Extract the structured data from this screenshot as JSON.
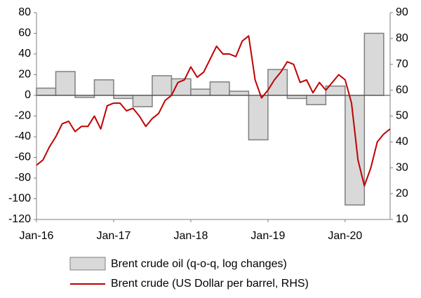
{
  "chart_data": {
    "type": "combo",
    "xlim": [
      "Jan-16",
      "Aug-20"
    ],
    "xticks": [
      "Jan-16",
      "Jan-17",
      "Jan-18",
      "Jan-19",
      "Jan-20"
    ],
    "ylim": [
      -120,
      80
    ],
    "yticks": [
      -120,
      -100,
      -80,
      -60,
      -40,
      -20,
      0,
      20,
      40,
      60,
      80
    ],
    "y2lim": [
      10,
      90
    ],
    "y2ticks": [
      10,
      20,
      30,
      40,
      50,
      60,
      70,
      80,
      90
    ],
    "series": [
      {
        "name": "Brent crude oil (q-o-q, log changes)",
        "type": "bar",
        "color": "#d9d9d9",
        "edge": "#7f7f7f",
        "x": [
          "Jan-16",
          "Apr-16",
          "Jul-16",
          "Oct-16",
          "Jan-17",
          "Apr-17",
          "Jul-17",
          "Oct-17",
          "Jan-18",
          "Apr-18",
          "Jul-18",
          "Oct-18",
          "Jan-19",
          "Apr-19",
          "Jul-19",
          "Oct-19",
          "Jan-20",
          "Apr-20"
        ],
        "values": [
          7,
          23,
          -2,
          15,
          -3,
          -11,
          19,
          16,
          6,
          13,
          4,
          -43,
          25,
          -3,
          -9,
          9,
          -106,
          60
        ]
      },
      {
        "name": "Brent crude (US Dollar per barrel, RHS)",
        "type": "line",
        "axis": "y2",
        "color": "#c00000",
        "x": [
          "Jan-16",
          "Feb-16",
          "Mar-16",
          "Apr-16",
          "May-16",
          "Jun-16",
          "Jul-16",
          "Aug-16",
          "Sep-16",
          "Oct-16",
          "Nov-16",
          "Dec-16",
          "Jan-17",
          "Feb-17",
          "Mar-17",
          "Apr-17",
          "May-17",
          "Jun-17",
          "Jul-17",
          "Aug-17",
          "Sep-17",
          "Oct-17",
          "Nov-17",
          "Dec-17",
          "Jan-18",
          "Feb-18",
          "Mar-18",
          "Apr-18",
          "May-18",
          "Jun-18",
          "Jul-18",
          "Aug-18",
          "Sep-18",
          "Oct-18",
          "Nov-18",
          "Dec-18",
          "Jan-19",
          "Feb-19",
          "Mar-19",
          "Apr-19",
          "May-19",
          "Jun-19",
          "Jul-19",
          "Aug-19",
          "Sep-19",
          "Oct-19",
          "Nov-19",
          "Dec-19",
          "Jan-20",
          "Feb-20",
          "Mar-20",
          "Apr-20",
          "May-20",
          "Jun-20",
          "Jul-20",
          "Aug-20"
        ],
        "values": [
          31,
          33,
          38,
          42,
          47,
          48,
          44,
          46,
          46,
          50,
          45,
          54,
          55,
          55,
          52,
          53,
          50,
          46,
          49,
          51,
          56,
          58,
          63,
          64,
          69,
          65,
          67,
          72,
          77,
          74,
          74,
          73,
          79,
          81,
          64,
          57,
          60,
          64,
          67,
          71,
          70,
          63,
          64,
          59,
          63,
          60,
          63,
          66,
          64,
          55,
          33,
          23,
          30,
          40,
          43,
          45
        ]
      }
    ]
  }
}
